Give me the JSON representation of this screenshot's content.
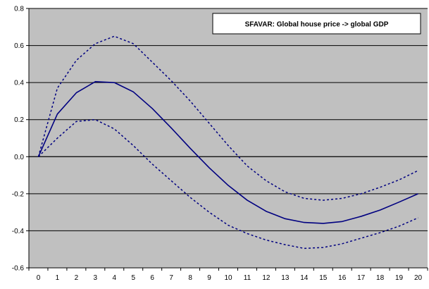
{
  "chart_data": {
    "type": "line",
    "title": "",
    "xlabel": "",
    "ylabel": "",
    "x": [
      0,
      1,
      2,
      3,
      4,
      5,
      6,
      7,
      8,
      9,
      10,
      11,
      12,
      13,
      14,
      15,
      16,
      17,
      18,
      19,
      20
    ],
    "ylim": [
      -0.6,
      0.8
    ],
    "yticks": [
      -0.6,
      -0.4,
      -0.2,
      0.0,
      0.2,
      0.4,
      0.6,
      0.8
    ],
    "ytick_labels": [
      "-0.6",
      "-0.4",
      "-0.2",
      "0.0",
      "0.2",
      "0.4",
      "0.6",
      "0.8"
    ],
    "xtick_labels": [
      "0",
      "1",
      "2",
      "3",
      "4",
      "5",
      "6",
      "7",
      "8",
      "9",
      "10",
      "11",
      "12",
      "13",
      "14",
      "15",
      "16",
      "17",
      "18",
      "19",
      "20"
    ],
    "grid": "horizontal",
    "legend_placement": "top-right",
    "legend_text": "SFAVAR: Global house price -> global GDP",
    "plot_background": "#c0c0c0",
    "series": [
      {
        "role": "median",
        "style": "solid",
        "color": "#000080",
        "values": [
          0.0,
          0.23,
          0.345,
          0.405,
          0.4,
          0.35,
          0.26,
          0.155,
          0.045,
          -0.06,
          -0.155,
          -0.235,
          -0.295,
          -0.335,
          -0.355,
          -0.36,
          -0.35,
          -0.322,
          -0.288,
          -0.245,
          -0.2
        ]
      },
      {
        "role": "upper",
        "style": "dotted",
        "color": "#000080",
        "values": [
          0.0,
          0.37,
          0.52,
          0.61,
          0.65,
          0.61,
          0.51,
          0.41,
          0.3,
          0.18,
          0.06,
          -0.05,
          -0.13,
          -0.19,
          -0.225,
          -0.235,
          -0.225,
          -0.2,
          -0.165,
          -0.125,
          -0.075
        ]
      },
      {
        "role": "lower",
        "style": "dotted",
        "color": "#000080",
        "values": [
          0.0,
          0.1,
          0.19,
          0.2,
          0.15,
          0.06,
          -0.04,
          -0.13,
          -0.22,
          -0.3,
          -0.37,
          -0.415,
          -0.45,
          -0.475,
          -0.495,
          -0.49,
          -0.47,
          -0.44,
          -0.41,
          -0.375,
          -0.33
        ]
      }
    ]
  }
}
